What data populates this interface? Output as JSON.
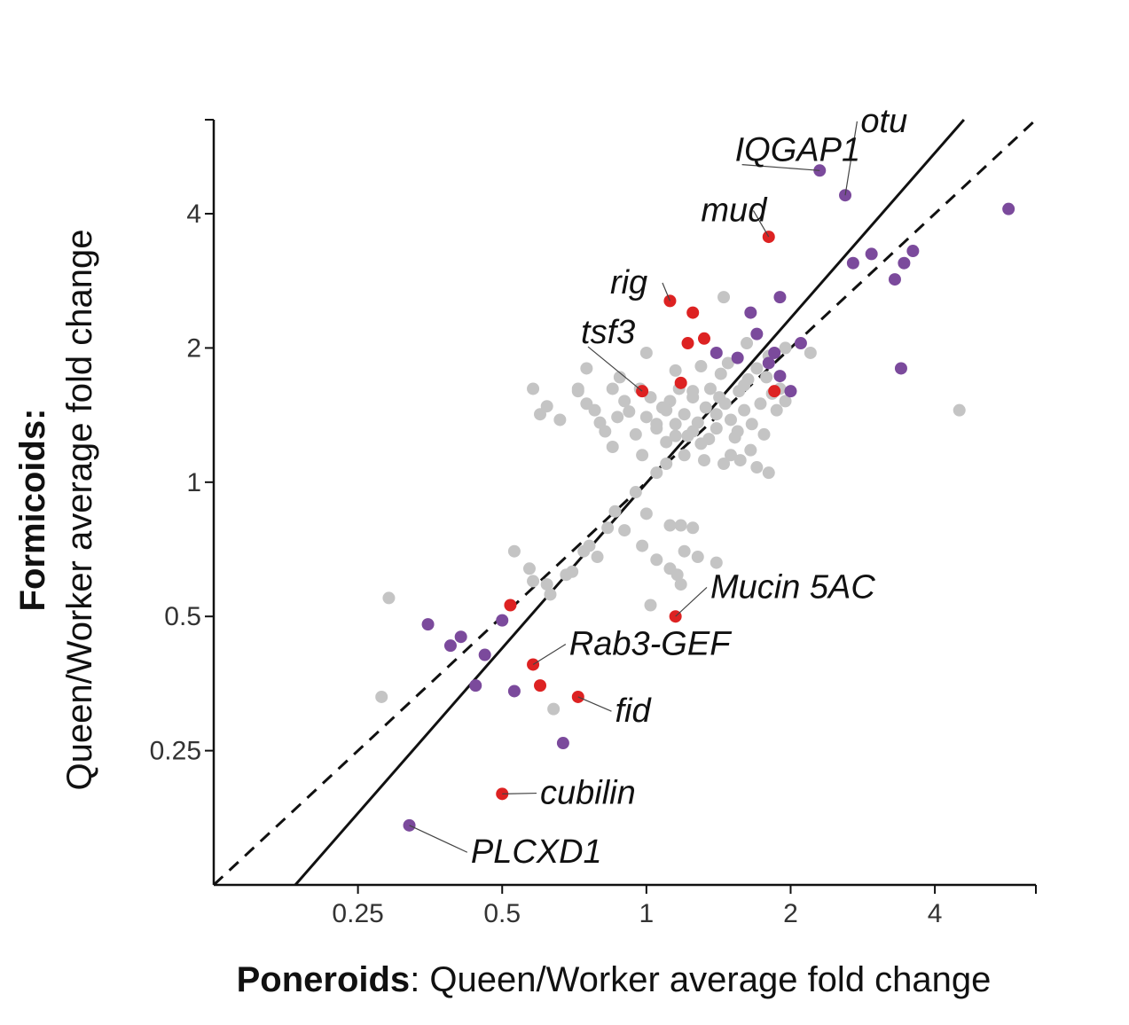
{
  "chart_data": {
    "type": "scatter",
    "scale": "log2",
    "xlabel_bold": "Poneroids",
    "xlabel_rest": ": Queen/Worker average fold change",
    "ylabel_bold": "Formicoids:",
    "ylabel_rest": "Queen/Worker average fold change",
    "xlim": [
      0.125,
      6.5
    ],
    "ylim": [
      0.125,
      6.5
    ],
    "x_ticks": [
      {
        "value": 0.25,
        "label": "0.25"
      },
      {
        "value": 0.5,
        "label": "0.5"
      },
      {
        "value": 1,
        "label": "1"
      },
      {
        "value": 2,
        "label": "2"
      },
      {
        "value": 4,
        "label": "4"
      }
    ],
    "y_ticks": [
      {
        "value": 0.25,
        "label": "0.25"
      },
      {
        "value": 0.5,
        "label": "0.5"
      },
      {
        "value": 1,
        "label": "1"
      },
      {
        "value": 2,
        "label": "2"
      },
      {
        "value": 4,
        "label": "4"
      }
    ],
    "colors": {
      "gray": "#c4c4c4",
      "purple": "#7b4a9c",
      "red": "#dd2222"
    },
    "series": [
      {
        "color_key": "gray",
        "points": [
          [
            0.29,
            0.55
          ],
          [
            0.28,
            0.33
          ],
          [
            0.53,
            0.7
          ],
          [
            0.57,
            0.64
          ],
          [
            0.58,
            0.6
          ],
          [
            0.62,
            0.59
          ],
          [
            0.63,
            0.56
          ],
          [
            0.68,
            0.62
          ],
          [
            0.7,
            0.63
          ],
          [
            0.74,
            0.7
          ],
          [
            0.76,
            0.72
          ],
          [
            0.79,
            0.68
          ],
          [
            0.83,
            0.79
          ],
          [
            0.86,
            0.86
          ],
          [
            0.9,
            0.78
          ],
          [
            0.95,
            0.95
          ],
          [
            0.98,
            0.72
          ],
          [
            1.0,
            0.85
          ],
          [
            1.05,
            0.67
          ],
          [
            1.12,
            0.64
          ],
          [
            1.16,
            0.62
          ],
          [
            1.18,
            0.59
          ],
          [
            1.2,
            0.7
          ],
          [
            1.28,
            0.68
          ],
          [
            1.4,
            0.66
          ],
          [
            1.02,
            0.53
          ],
          [
            0.64,
            0.31
          ],
          [
            1.12,
            0.8
          ],
          [
            1.18,
            0.8
          ],
          [
            1.25,
            0.79
          ],
          [
            0.58,
            1.62
          ],
          [
            0.62,
            1.48
          ],
          [
            0.6,
            1.42
          ],
          [
            0.66,
            1.38
          ],
          [
            0.72,
            1.6
          ],
          [
            0.75,
            1.5
          ],
          [
            0.78,
            1.45
          ],
          [
            0.8,
            1.36
          ],
          [
            0.82,
            1.3
          ],
          [
            0.85,
            1.2
          ],
          [
            0.87,
            1.4
          ],
          [
            0.9,
            1.52
          ],
          [
            0.92,
            1.44
          ],
          [
            0.95,
            1.28
          ],
          [
            0.97,
            1.62
          ],
          [
            1.0,
            1.4
          ],
          [
            1.02,
            1.55
          ],
          [
            1.05,
            1.35
          ],
          [
            1.08,
            1.47
          ],
          [
            1.1,
            1.23
          ],
          [
            1.12,
            1.52
          ],
          [
            1.15,
            1.35
          ],
          [
            1.17,
            1.62
          ],
          [
            1.2,
            1.42
          ],
          [
            1.22,
            1.27
          ],
          [
            1.25,
            1.55
          ],
          [
            1.28,
            1.36
          ],
          [
            1.3,
            1.22
          ],
          [
            1.33,
            1.47
          ],
          [
            1.36,
            1.62
          ],
          [
            1.4,
            1.32
          ],
          [
            1.43,
            1.75
          ],
          [
            1.46,
            1.5
          ],
          [
            1.5,
            1.38
          ],
          [
            1.53,
            1.26
          ],
          [
            1.56,
            1.6
          ],
          [
            1.6,
            1.45
          ],
          [
            1.63,
            1.7
          ],
          [
            1.66,
            1.35
          ],
          [
            1.7,
            1.8
          ],
          [
            1.73,
            1.5
          ],
          [
            1.76,
            1.28
          ],
          [
            1.8,
            1.92
          ],
          [
            1.83,
            1.58
          ],
          [
            1.87,
            1.45
          ],
          [
            1.9,
            1.62
          ],
          [
            1.95,
            1.52
          ],
          [
            1.0,
            1.95
          ],
          [
            0.75,
            1.8
          ],
          [
            0.88,
            1.72
          ],
          [
            1.15,
            1.78
          ],
          [
            1.3,
            1.82
          ],
          [
            1.48,
            1.85
          ],
          [
            1.62,
            2.05
          ],
          [
            0.72,
            1.62
          ],
          [
            0.85,
            1.62
          ],
          [
            1.2,
            1.15
          ],
          [
            1.32,
            1.12
          ],
          [
            1.45,
            1.1
          ],
          [
            1.57,
            1.12
          ],
          [
            1.65,
            1.18
          ],
          [
            1.7,
            1.08
          ],
          [
            1.8,
            1.05
          ],
          [
            1.1,
            1.1
          ],
          [
            1.05,
            1.05
          ],
          [
            0.98,
            1.15
          ],
          [
            1.1,
            1.45
          ],
          [
            1.25,
            1.3
          ],
          [
            1.42,
            1.55
          ],
          [
            1.55,
            1.3
          ],
          [
            1.35,
            1.25
          ],
          [
            1.5,
            1.15
          ],
          [
            2.2,
            1.95
          ],
          [
            1.95,
            2.0
          ],
          [
            1.25,
            1.6
          ],
          [
            1.45,
            2.6
          ],
          [
            1.05,
            1.32
          ],
          [
            1.15,
            1.27
          ],
          [
            1.4,
            1.42
          ],
          [
            1.6,
            1.65
          ],
          [
            1.78,
            1.72
          ],
          [
            4.5,
            1.45
          ]
        ]
      },
      {
        "color_key": "purple",
        "points": [
          [
            2.3,
            5.0
          ],
          [
            2.6,
            4.4
          ],
          [
            5.7,
            4.1
          ],
          [
            2.7,
            3.1
          ],
          [
            2.95,
            3.25
          ],
          [
            3.3,
            2.85
          ],
          [
            3.45,
            3.1
          ],
          [
            3.6,
            3.3
          ],
          [
            1.9,
            2.6
          ],
          [
            1.65,
            2.4
          ],
          [
            2.1,
            2.05
          ],
          [
            1.7,
            2.15
          ],
          [
            1.8,
            1.85
          ],
          [
            1.85,
            1.95
          ],
          [
            1.9,
            1.73
          ],
          [
            2.0,
            1.6
          ],
          [
            1.4,
            1.95
          ],
          [
            1.55,
            1.9
          ],
          [
            3.4,
            1.8
          ],
          [
            0.32,
            0.17
          ],
          [
            0.35,
            0.48
          ],
          [
            0.39,
            0.43
          ],
          [
            0.41,
            0.45
          ],
          [
            0.46,
            0.41
          ],
          [
            0.44,
            0.35
          ],
          [
            0.5,
            0.49
          ],
          [
            0.53,
            0.34
          ],
          [
            0.67,
            0.26
          ]
        ]
      },
      {
        "color_key": "red",
        "points": [
          [
            1.8,
            3.55
          ],
          [
            1.12,
            2.55
          ],
          [
            1.25,
            2.4
          ],
          [
            1.22,
            2.05
          ],
          [
            1.32,
            2.1
          ],
          [
            1.18,
            1.67
          ],
          [
            0.98,
            1.6
          ],
          [
            1.85,
            1.6
          ],
          [
            1.15,
            0.5
          ],
          [
            0.52,
            0.53
          ],
          [
            0.58,
            0.39
          ],
          [
            0.6,
            0.35
          ],
          [
            0.72,
            0.33
          ],
          [
            0.5,
            0.2
          ]
        ]
      }
    ],
    "reference_lines": [
      {
        "name": "identity",
        "style": "dashed",
        "x0": 0.125,
        "y0": 0.125,
        "x1": 6.5,
        "y1": 6.5
      },
      {
        "name": "fit",
        "style": "solid",
        "x0": 0.185,
        "y0": 0.125,
        "x1": 4.6,
        "y1": 6.5
      }
    ],
    "annotations": [
      {
        "text": "otu",
        "px": 2.6,
        "py": 4.4,
        "lx": 2.8,
        "ly": 6.1
      },
      {
        "text": "IQGAP1",
        "px": 2.3,
        "py": 5.0,
        "lx": 1.53,
        "ly": 5.25
      },
      {
        "text": "mud",
        "px": 1.8,
        "py": 3.55,
        "lx": 1.3,
        "ly": 3.85
      },
      {
        "text": "rig",
        "px": 1.12,
        "py": 2.55,
        "lx": 0.84,
        "ly": 2.65
      },
      {
        "text": "tsf3",
        "px": 0.98,
        "py": 1.6,
        "lx": 0.73,
        "ly": 2.05
      },
      {
        "text": "Mucin 5AC",
        "px": 1.15,
        "py": 0.5,
        "lx": 1.36,
        "ly": 0.55
      },
      {
        "text": "Rab3-GEF",
        "px": 0.58,
        "py": 0.39,
        "lx": 0.69,
        "ly": 0.41
      },
      {
        "text": "fid",
        "px": 0.72,
        "py": 0.33,
        "lx": 0.86,
        "ly": 0.29
      },
      {
        "text": "cubilin",
        "px": 0.5,
        "py": 0.2,
        "lx": 0.6,
        "ly": 0.19
      },
      {
        "text": "PLCXD1",
        "px": 0.32,
        "py": 0.17,
        "lx": 0.43,
        "ly": 0.14
      }
    ]
  }
}
